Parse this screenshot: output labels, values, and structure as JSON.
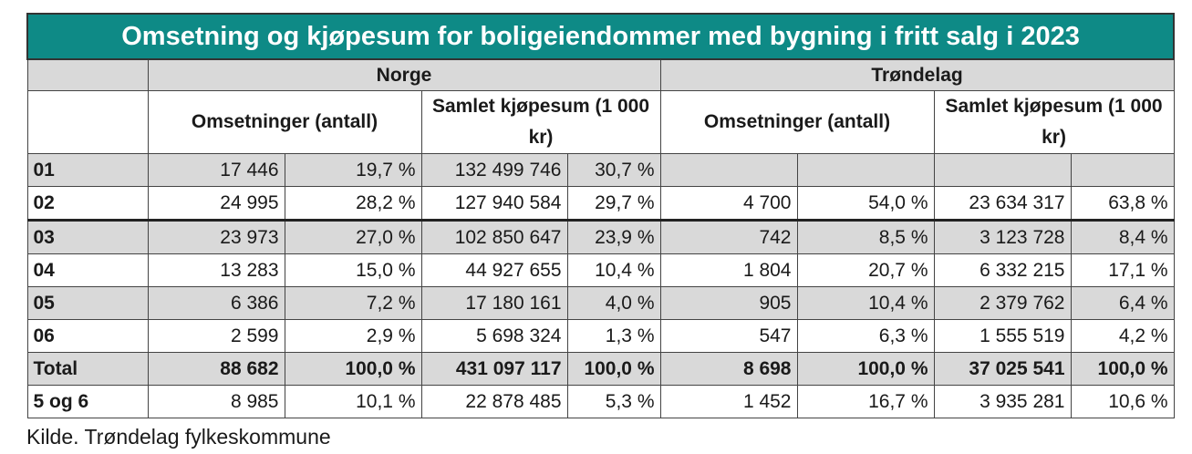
{
  "title": "Omsetning og kjøpesum for boligeiendommer med bygning i fritt salg i 2023",
  "groups": [
    "Norge",
    "Trøndelag"
  ],
  "subheaders": {
    "norge_count": "Omsetninger (antall)",
    "norge_sum": "Samlet kjøpesum (1 000 kr)",
    "trond_count": "Omsetninger (antall)",
    "trond_sum": "Samlet kjøpesum (1 000 kr)"
  },
  "rows": [
    {
      "label": "01",
      "v": [
        "17 446",
        "19,7 %",
        "132 499 746",
        "30,7 %",
        "",
        "",
        "",
        ""
      ]
    },
    {
      "label": "02",
      "v": [
        "24 995",
        "28,2 %",
        "127 940 584",
        "29,7 %",
        "4 700",
        "54,0 %",
        "23 634 317",
        "63,8 %"
      ]
    },
    {
      "label": "03",
      "v": [
        "23 973",
        "27,0 %",
        "102 850 647",
        "23,9 %",
        "742",
        "8,5 %",
        "3 123 728",
        "8,4 %"
      ]
    },
    {
      "label": "04",
      "v": [
        "13 283",
        "15,0 %",
        "44 927 655",
        "10,4 %",
        "1 804",
        "20,7 %",
        "6 332 215",
        "17,1 %"
      ]
    },
    {
      "label": "05",
      "v": [
        "6 386",
        "7,2 %",
        "17 180 161",
        "4,0 %",
        "905",
        "10,4 %",
        "2 379 762",
        "6,4 %"
      ]
    },
    {
      "label": "06",
      "v": [
        "2 599",
        "2,9 %",
        "5 698 324",
        "1,3 %",
        "547",
        "6,3 %",
        "1 555 519",
        "4,2 %"
      ]
    },
    {
      "label": "Total",
      "v": [
        "88 682",
        "100,0 %",
        "431 097 117",
        "100,0 %",
        "8 698",
        "100,0 %",
        "37 025 541",
        "100,0 %"
      ]
    },
    {
      "label": "5 og 6",
      "v": [
        "8 985",
        "10,1 %",
        "22 878 485",
        "5,3 %",
        "1 452",
        "16,7 %",
        "3 935 281",
        "10,6 %"
      ]
    }
  ],
  "caption": "Kilde. Trøndelag fylkeskommune",
  "colors": {
    "title_bg": "#0e8a86",
    "band": "#d9d9d9"
  }
}
